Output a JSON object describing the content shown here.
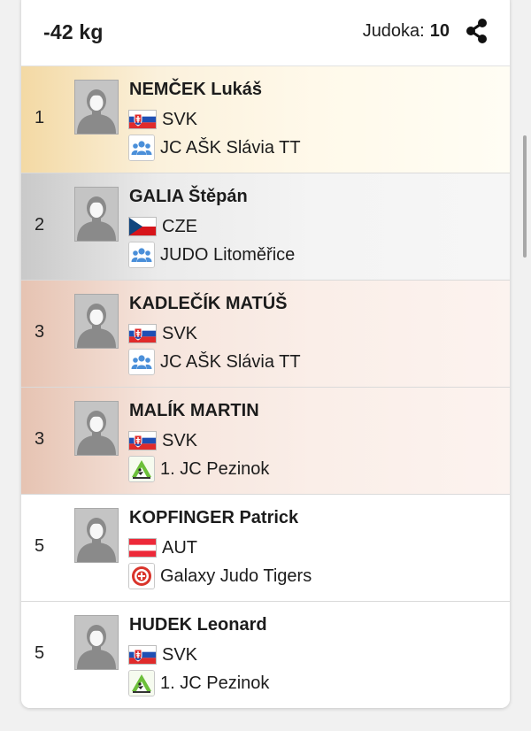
{
  "header": {
    "category": "-42 kg",
    "count_label": "Judoka:",
    "count_value": "10",
    "share_icon": "share-icon"
  },
  "results": [
    {
      "rank": "1",
      "medal": "gold",
      "name": "NEMČEK Lukáš",
      "country": "SVK",
      "club": "JC AŠK Slávia TT",
      "club_icon": "club-group-icon"
    },
    {
      "rank": "2",
      "medal": "silver",
      "name": "GALIA Štěpán",
      "country": "CZE",
      "club": "JUDO Litoměřice",
      "club_icon": "club-group-icon"
    },
    {
      "rank": "3",
      "medal": "bronze",
      "name": "KADLEČÍK MATÚŠ",
      "country": "SVK",
      "club": "JC AŠK Slávia TT",
      "club_icon": "club-group-icon"
    },
    {
      "rank": "3",
      "medal": "bronze",
      "name": "MALÍK MARTIN",
      "country": "SVK",
      "club": "1. JC Pezinok",
      "club_icon": "club-pezinok-logo"
    },
    {
      "rank": "5",
      "medal": "none",
      "name": "KOPFINGER Patrick",
      "country": "AUT",
      "club": "Galaxy Judo Tigers",
      "club_icon": "club-galaxy-logo"
    },
    {
      "rank": "5",
      "medal": "none",
      "name": "HUDEK Leonard",
      "country": "SVK",
      "club": "1. JC Pezinok",
      "club_icon": "club-pezinok-logo"
    }
  ],
  "colors": {
    "gold": "#f3d9a4",
    "silver": "#c9c9c9",
    "bronze": "#e6c3b2",
    "club_icon_blue": "#4a8fd9"
  }
}
